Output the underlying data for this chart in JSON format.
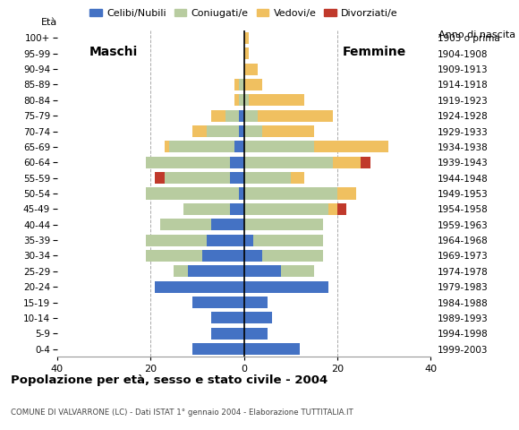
{
  "age_groups": [
    "0-4",
    "5-9",
    "10-14",
    "15-19",
    "20-24",
    "25-29",
    "30-34",
    "35-39",
    "40-44",
    "45-49",
    "50-54",
    "55-59",
    "60-64",
    "65-69",
    "70-74",
    "75-79",
    "80-84",
    "85-89",
    "90-94",
    "95-99",
    "100+"
  ],
  "birth_years": [
    "1999-2003",
    "1994-1998",
    "1989-1993",
    "1984-1988",
    "1979-1983",
    "1974-1978",
    "1969-1973",
    "1964-1968",
    "1959-1963",
    "1954-1958",
    "1949-1953",
    "1944-1948",
    "1939-1943",
    "1934-1938",
    "1929-1933",
    "1924-1928",
    "1919-1923",
    "1914-1918",
    "1909-1913",
    "1904-1908",
    "1903 o prima"
  ],
  "males": {
    "celibi": [
      11,
      7,
      7,
      11,
      19,
      12,
      9,
      8,
      7,
      3,
      1,
      3,
      3,
      2,
      1,
      1,
      0,
      0,
      0,
      0,
      0
    ],
    "coniugati": [
      0,
      0,
      0,
      0,
      0,
      3,
      12,
      13,
      11,
      10,
      20,
      14,
      18,
      14,
      7,
      3,
      1,
      1,
      0,
      0,
      0
    ],
    "vedovi": [
      0,
      0,
      0,
      0,
      0,
      0,
      0,
      0,
      0,
      0,
      0,
      0,
      0,
      1,
      3,
      3,
      1,
      1,
      0,
      0,
      0
    ],
    "divorziati": [
      0,
      0,
      0,
      0,
      0,
      0,
      0,
      0,
      0,
      0,
      0,
      2,
      0,
      0,
      0,
      0,
      0,
      0,
      0,
      0,
      0
    ]
  },
  "females": {
    "nubili": [
      12,
      5,
      6,
      5,
      18,
      8,
      4,
      2,
      0,
      0,
      0,
      0,
      0,
      0,
      0,
      0,
      0,
      0,
      0,
      0,
      0
    ],
    "coniugate": [
      0,
      0,
      0,
      0,
      0,
      7,
      13,
      15,
      17,
      18,
      20,
      10,
      19,
      15,
      4,
      3,
      1,
      0,
      0,
      0,
      0
    ],
    "vedove": [
      0,
      0,
      0,
      0,
      0,
      0,
      0,
      0,
      0,
      2,
      4,
      3,
      6,
      16,
      11,
      16,
      12,
      4,
      3,
      1,
      1
    ],
    "divorziate": [
      0,
      0,
      0,
      0,
      0,
      0,
      0,
      0,
      0,
      2,
      0,
      0,
      2,
      0,
      0,
      0,
      0,
      0,
      0,
      0,
      0
    ]
  },
  "colors": {
    "celibi": "#4472c4",
    "coniugati": "#b8cca0",
    "vedovi": "#f0c060",
    "divorziati": "#c0392b"
  },
  "xlim": 40,
  "title": "Popolazione per età, sesso e stato civile - 2004",
  "subtitle": "COMUNE DI VALVARRONE (LC) - Dati ISTAT 1° gennaio 2004 - Elaborazione TUTTITALIA.IT",
  "ylabel_left": "Età",
  "ylabel_right": "Anno di nascita",
  "label_maschi": "Maschi",
  "label_femmine": "Femmine",
  "legend_labels": [
    "Celibi/Nubili",
    "Coniugati/e",
    "Vedovi/e",
    "Divorziati/e"
  ],
  "bg_color": "#ffffff",
  "bar_height": 0.75
}
